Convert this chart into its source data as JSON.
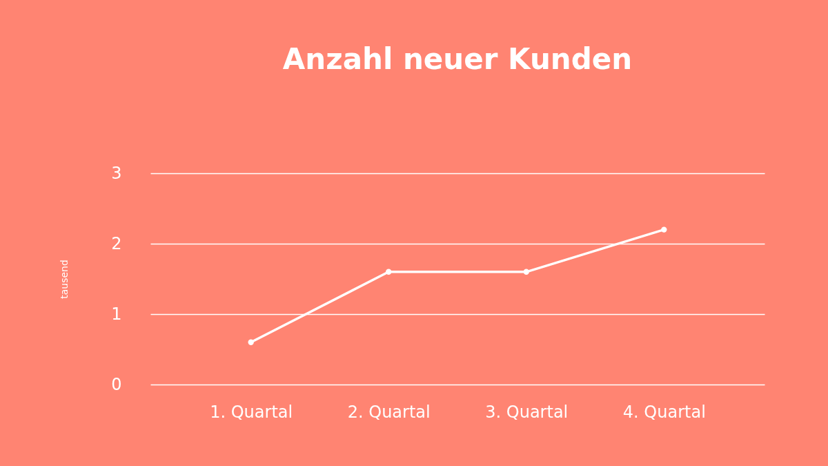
{
  "chart_data": {
    "type": "line",
    "title": "Anzahl neuer Kunden",
    "ylabel": "tausend",
    "categories": [
      "1. Quartal",
      "2. Quartal",
      "3. Quartal",
      "4. Quartal"
    ],
    "series": [
      {
        "color": "#ffffff",
        "values": [
          0.6,
          1.6,
          1.6,
          2.2
        ]
      }
    ],
    "ylim": [
      0,
      3
    ],
    "yticks": [
      0,
      1,
      2,
      3
    ],
    "grid": "y",
    "marker": "circle",
    "line_style": "solid",
    "legend": false
  }
}
